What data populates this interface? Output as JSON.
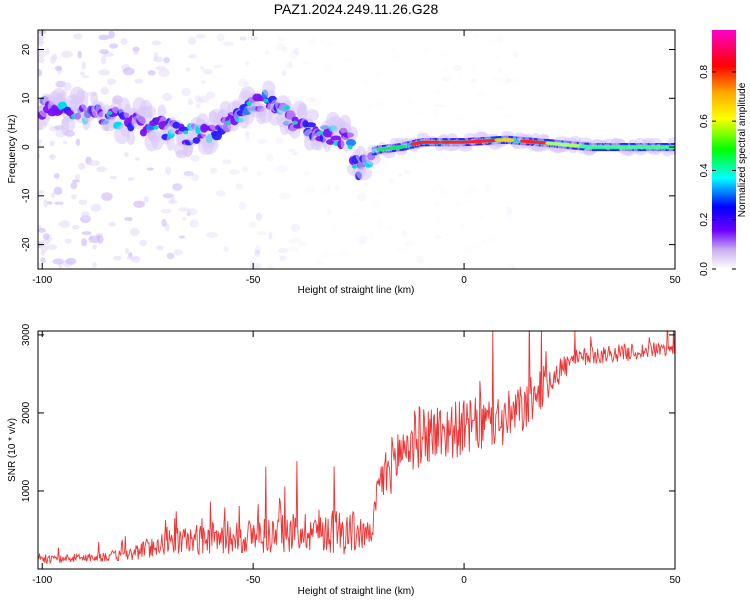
{
  "title": "PAZ1.2024.249.11.26.G28",
  "chart_data": [
    {
      "type": "heatmap",
      "xlabel": "Height of straight line (km)",
      "ylabel": "Frequency (Hz)",
      "xlim": [
        -101,
        50
      ],
      "ylim": [
        -25,
        24
      ],
      "xticks": [
        -100,
        -50,
        0,
        50
      ],
      "xtick_labels": [
        "-100",
        "-50",
        "0",
        "50"
      ],
      "yticks": [
        20,
        10,
        0,
        -10,
        -20
      ],
      "ytick_labels": [
        "20",
        "10",
        "0",
        "-10",
        "-20"
      ],
      "ridge": {
        "x": [
          -100,
          -95,
          -90,
          -85,
          -80,
          -75,
          -70,
          -65,
          -60,
          -55,
          -50,
          -47,
          -44,
          -40,
          -35,
          -30,
          -27,
          -25,
          -22,
          -20,
          -15,
          -10,
          0,
          10,
          20,
          30,
          40,
          50
        ],
        "y": [
          8,
          7.5,
          7,
          6.5,
          5.5,
          4.5,
          3.5,
          2.5,
          3,
          5,
          9,
          9.5,
          7.5,
          5,
          3,
          2,
          1,
          -5,
          -1,
          -0.5,
          0,
          1,
          1,
          1.5,
          0.8,
          0,
          0,
          0
        ]
      },
      "colorbar": {
        "label": "Normalized spectral amplitude",
        "range": [
          0,
          0.97
        ],
        "ticks": [
          0.0,
          0.2,
          0.4,
          0.6,
          0.8
        ],
        "tick_labels": [
          "0.0",
          "0.2",
          "0.4",
          "0.6",
          "0.8"
        ],
        "colormap": "rainbow (white–violet–blue–cyan–green–yellow–orange–red–magenta)"
      }
    },
    {
      "type": "line",
      "xlabel": "Height of straight line (km)",
      "ylabel": "SNR (10 * v/v)",
      "xlim": [
        -101,
        50
      ],
      "ylim": [
        0,
        3050
      ],
      "xticks": [
        -100,
        -50,
        0,
        50
      ],
      "xtick_labels": [
        "-100",
        "-50",
        "0",
        "50"
      ],
      "yticks": [
        1000,
        2000,
        3000
      ],
      "ytick_labels": [
        "1000",
        "2000",
        "3000"
      ],
      "color": "#ee3333",
      "trend": {
        "x": [
          -101,
          -90,
          -80,
          -75,
          -70,
          -60,
          -50,
          -45,
          -40,
          -35,
          -30,
          -25,
          -22,
          -20,
          -15,
          -10,
          -5,
          0,
          5,
          10,
          15,
          20,
          25,
          30,
          40,
          50
        ],
        "y": [
          100,
          130,
          150,
          230,
          300,
          330,
          350,
          370,
          400,
          420,
          400,
          380,
          400,
          1000,
          1400,
          1600,
          1650,
          1700,
          1750,
          1800,
          2000,
          2350,
          2600,
          2700,
          2750,
          2800
        ]
      },
      "noise_amplitude": {
        "x": [
          -101,
          -90,
          -80,
          -75,
          -70,
          -60,
          -50,
          -40,
          -30,
          -25,
          -22,
          -20,
          -15,
          -10,
          0,
          10,
          15,
          20,
          25,
          30,
          50
        ],
        "y": [
          60,
          70,
          100,
          160,
          200,
          260,
          300,
          320,
          380,
          340,
          150,
          400,
          500,
          500,
          450,
          450,
          400,
          300,
          180,
          150,
          120
        ]
      }
    }
  ]
}
